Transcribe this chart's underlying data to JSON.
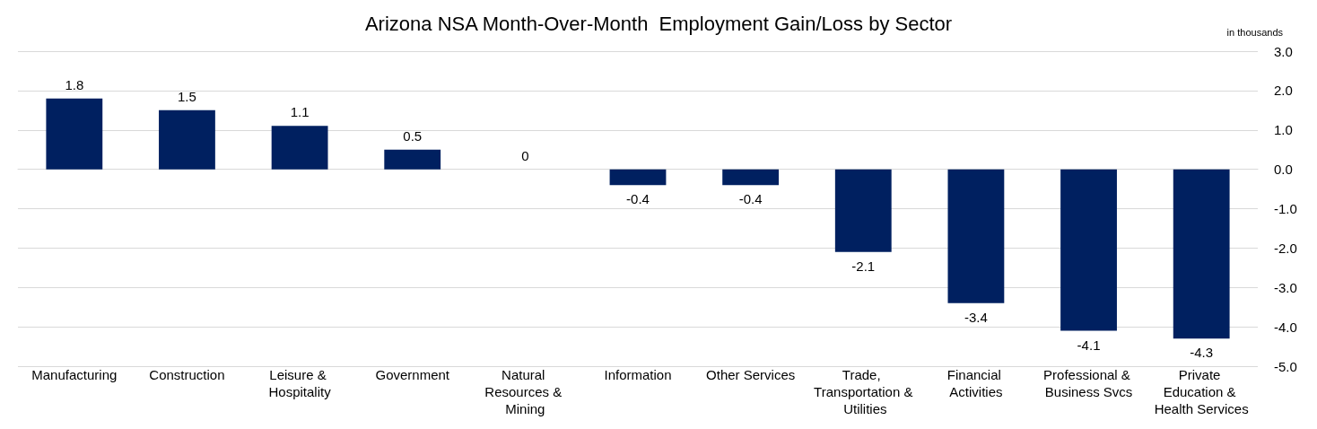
{
  "chart_data": {
    "type": "bar",
    "title": "Arizona NSA Month-Over-Month  Employment Gain/Loss by Sector",
    "ylabel": "in thousands",
    "categories": [
      "Manufacturing",
      "Construction",
      "Leisure & Hospitality",
      "Government",
      "Natural Resources & Mining",
      "Information",
      "Other Services",
      "Trade, Transportation & Utilities",
      "Financial Activities",
      "Professional & Business Svcs",
      "Private Education & Health Services"
    ],
    "values": [
      1.8,
      1.5,
      1.1,
      0.5,
      0,
      -0.4,
      -0.4,
      -2.1,
      -3.4,
      -4.1,
      -4.3
    ],
    "color": "#002060",
    "ylim": [
      -5,
      3
    ],
    "yticks": [
      {
        "value": 3,
        "label": "3.0"
      },
      {
        "value": 2,
        "label": "2.0"
      },
      {
        "value": 1,
        "label": "1.0"
      },
      {
        "value": 0,
        "label": "0.0"
      },
      {
        "value": -1,
        "label": "-1.0"
      },
      {
        "value": -2,
        "label": "-2.0"
      },
      {
        "value": -3,
        "label": "-3.0"
      },
      {
        "value": -4,
        "label": "-4.0"
      },
      {
        "value": -5,
        "label": "-5.0"
      }
    ],
    "grid": "y",
    "data_labels": true
  }
}
